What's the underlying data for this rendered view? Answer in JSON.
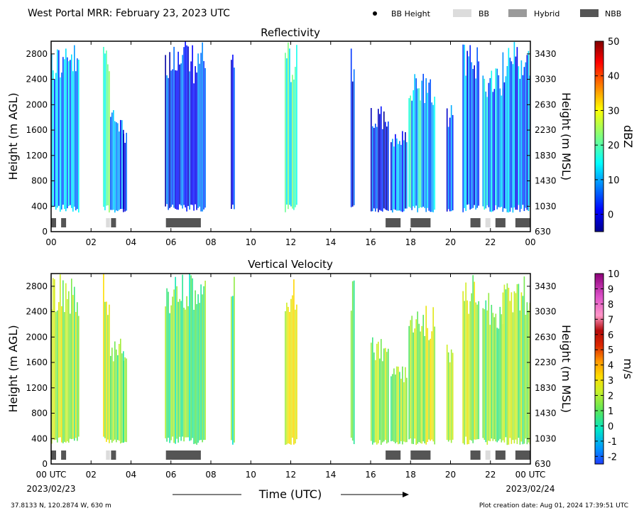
{
  "header": {
    "title": "West Portal MRR:  February 23, 2023 UTC"
  },
  "legend": {
    "items": [
      {
        "label": "BB Height",
        "symbol": "dot",
        "color": "#000000"
      },
      {
        "label": "BB",
        "symbol": "box",
        "color": "#dcdcdc"
      },
      {
        "label": "Hybrid",
        "symbol": "box",
        "color": "#9a9a9a"
      },
      {
        "label": "NBB",
        "symbol": "box",
        "color": "#555555"
      }
    ]
  },
  "footer": {
    "location": "37.8133 N, 120.2874 W, 630 m",
    "creation_date": "Plot creation date: Aug 01, 2024 17:39:51 UTC",
    "xlabel": "Time (UTC)",
    "start_date": "2023/02/23",
    "end_date": "2023/02/24"
  },
  "chart_data": [
    {
      "type": "heatmap",
      "title": "Reflectivity",
      "ylabel": "Height (m AGL)",
      "ylabel_right": "Height (m MSL)",
      "x_ticks": [
        "00",
        "02",
        "04",
        "06",
        "08",
        "10",
        "12",
        "14",
        "16",
        "18",
        "20",
        "22",
        "00"
      ],
      "xlim": [
        0,
        24
      ],
      "ylim": [
        0,
        3000
      ],
      "y_ticks": [
        0,
        400,
        800,
        1200,
        1600,
        2000,
        2400,
        2800
      ],
      "y_ticks_right": [
        "630",
        "1030",
        "1430",
        "1830",
        "2230",
        "2630",
        "3030",
        "3430"
      ],
      "colorbar": {
        "label": "dBZ",
        "range": [
          -5,
          50
        ],
        "ticks": [
          "0",
          "10",
          "20",
          "30",
          "40",
          "50"
        ],
        "tick_values": [
          0,
          10,
          20,
          30,
          40,
          50
        ]
      },
      "echo_columns": [
        {
          "start": 0.0,
          "end": 1.4,
          "top": 3000,
          "value": 8
        },
        {
          "start": 2.6,
          "end": 2.9,
          "top": 3000,
          "value": 22
        },
        {
          "start": 2.95,
          "end": 3.6,
          "top": 2000,
          "value": 5
        },
        {
          "start": 3.6,
          "end": 3.8,
          "top": 1700,
          "value": 2
        },
        {
          "start": 5.7,
          "end": 7.7,
          "top": 3000,
          "value": 4
        },
        {
          "start": 9.0,
          "end": 9.2,
          "top": 3000,
          "value": 0
        },
        {
          "start": 11.7,
          "end": 12.3,
          "top": 3000,
          "value": 15
        },
        {
          "start": 15.0,
          "end": 15.2,
          "top": 2900,
          "value": 0
        },
        {
          "start": 16.0,
          "end": 16.9,
          "top": 2000,
          "value": 2
        },
        {
          "start": 17.0,
          "end": 17.8,
          "top": 1600,
          "value": 5
        },
        {
          "start": 17.9,
          "end": 19.2,
          "top": 2500,
          "value": 12
        },
        {
          "start": 19.8,
          "end": 20.1,
          "top": 2000,
          "value": 6
        },
        {
          "start": 20.6,
          "end": 21.4,
          "top": 3000,
          "value": 6
        },
        {
          "start": 21.6,
          "end": 22.6,
          "top": 2700,
          "value": 10
        },
        {
          "start": 22.6,
          "end": 24.0,
          "top": 3000,
          "value": 7
        }
      ],
      "bright_band_segments": [
        {
          "start": 0.0,
          "end": 0.25,
          "class": "NBB"
        },
        {
          "start": 0.5,
          "end": 0.75,
          "class": "NBB"
        },
        {
          "start": 2.75,
          "end": 2.95,
          "class": "BB"
        },
        {
          "start": 3.0,
          "end": 3.25,
          "class": "NBB"
        },
        {
          "start": 5.75,
          "end": 7.5,
          "class": "NBB"
        },
        {
          "start": 16.75,
          "end": 17.5,
          "class": "NBB"
        },
        {
          "start": 18.0,
          "end": 19.0,
          "class": "NBB"
        },
        {
          "start": 21.0,
          "end": 21.5,
          "class": "NBB"
        },
        {
          "start": 21.75,
          "end": 22.0,
          "class": "BB"
        },
        {
          "start": 22.25,
          "end": 22.75,
          "class": "NBB"
        },
        {
          "start": 23.25,
          "end": 24.0,
          "class": "NBB"
        }
      ]
    },
    {
      "type": "heatmap",
      "title": "Vertical Velocity",
      "ylabel": "Height (m AGL)",
      "ylabel_right": "Height (m MSL)",
      "x_ticks": [
        "00 UTC",
        "02",
        "04",
        "06",
        "08",
        "10",
        "12",
        "14",
        "16",
        "18",
        "20",
        "22",
        "00 UTC"
      ],
      "xlim": [
        0,
        24
      ],
      "ylim": [
        0,
        3000
      ],
      "y_ticks": [
        0,
        400,
        800,
        1200,
        1600,
        2000,
        2400,
        2800
      ],
      "y_ticks_right": [
        "630",
        "1030",
        "1430",
        "1830",
        "2230",
        "2630",
        "3030",
        "3430"
      ],
      "colorbar": {
        "label": "m/s",
        "range": [
          -2.5,
          10
        ],
        "ticks": [
          "-2",
          "-1",
          "0",
          "1",
          "2",
          "3",
          "4",
          "5",
          "6",
          "7",
          "8",
          "9",
          "10"
        ],
        "tick_values": [
          -2,
          -1,
          0,
          1,
          2,
          3,
          4,
          5,
          6,
          7,
          8,
          9,
          10
        ]
      },
      "echo_columns": [
        {
          "start": 0.0,
          "end": 1.4,
          "top": 3000,
          "value": 1.8
        },
        {
          "start": 2.6,
          "end": 2.9,
          "top": 3000,
          "value": 2.2
        },
        {
          "start": 2.95,
          "end": 3.6,
          "top": 2000,
          "value": 1.2
        },
        {
          "start": 3.6,
          "end": 3.8,
          "top": 1700,
          "value": 0.8
        },
        {
          "start": 5.7,
          "end": 7.7,
          "top": 3000,
          "value": 1.0
        },
        {
          "start": 9.0,
          "end": 9.2,
          "top": 3000,
          "value": 0.6
        },
        {
          "start": 11.7,
          "end": 12.3,
          "top": 3000,
          "value": 2.8
        },
        {
          "start": 15.0,
          "end": 15.2,
          "top": 2900,
          "value": 1.2
        },
        {
          "start": 16.0,
          "end": 16.9,
          "top": 2000,
          "value": 1.8
        },
        {
          "start": 17.0,
          "end": 17.8,
          "top": 1600,
          "value": 1.6
        },
        {
          "start": 17.9,
          "end": 19.2,
          "top": 2500,
          "value": 2.0
        },
        {
          "start": 19.8,
          "end": 20.1,
          "top": 2000,
          "value": 2.2
        },
        {
          "start": 20.6,
          "end": 21.4,
          "top": 3000,
          "value": 1.8
        },
        {
          "start": 21.6,
          "end": 22.6,
          "top": 2700,
          "value": 1.4
        },
        {
          "start": 22.6,
          "end": 24.0,
          "top": 3000,
          "value": 1.6
        }
      ],
      "bright_band_segments": [
        {
          "start": 0.0,
          "end": 0.25,
          "class": "NBB"
        },
        {
          "start": 0.5,
          "end": 0.75,
          "class": "NBB"
        },
        {
          "start": 2.75,
          "end": 2.95,
          "class": "BB"
        },
        {
          "start": 3.0,
          "end": 3.25,
          "class": "NBB"
        },
        {
          "start": 5.75,
          "end": 7.5,
          "class": "NBB"
        },
        {
          "start": 16.75,
          "end": 17.5,
          "class": "NBB"
        },
        {
          "start": 18.0,
          "end": 19.0,
          "class": "NBB"
        },
        {
          "start": 21.0,
          "end": 21.5,
          "class": "NBB"
        },
        {
          "start": 21.75,
          "end": 22.0,
          "class": "BB"
        },
        {
          "start": 22.25,
          "end": 22.75,
          "class": "NBB"
        },
        {
          "start": 23.25,
          "end": 24.0,
          "class": "NBB"
        }
      ]
    }
  ]
}
